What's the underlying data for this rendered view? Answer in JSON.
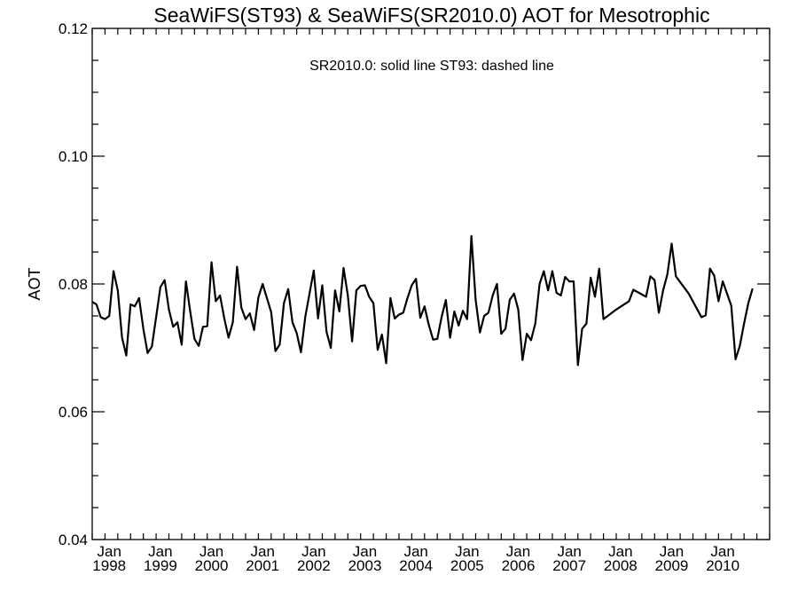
{
  "chart_data": {
    "type": "line",
    "title": "SeaWiFS(ST93) & SeaWiFS(SR2010.0)  AOT for Mesotrophic",
    "annotation": "SR2010.0: solid line   ST93: dashed line",
    "xlabel": "",
    "ylabel": "AOT",
    "ylim": [
      0.04,
      0.12
    ],
    "y_ticks": [
      "0.04",
      "0.06",
      "0.08",
      "0.10",
      "0.12"
    ],
    "x_ticks": [
      {
        "month": "Jan",
        "year": "1998"
      },
      {
        "month": "Jan",
        "year": "1999"
      },
      {
        "month": "Jan",
        "year": "2000"
      },
      {
        "month": "Jan",
        "year": "2001"
      },
      {
        "month": "Jan",
        "year": "2002"
      },
      {
        "month": "Jan",
        "year": "2003"
      },
      {
        "month": "Jan",
        "year": "2004"
      },
      {
        "month": "Jan",
        "year": "2005"
      },
      {
        "month": "Jan",
        "year": "2006"
      },
      {
        "month": "Jan",
        "year": "2007"
      },
      {
        "month": "Jan",
        "year": "2008"
      },
      {
        "month": "Jan",
        "year": "2009"
      },
      {
        "month": "Jan",
        "year": "2010"
      }
    ],
    "xlim": [
      "1997-09",
      "2010-12"
    ],
    "grid": false,
    "series": [
      {
        "name": "SR2010.0",
        "style": "solid",
        "color": "#000000",
        "points": [
          [
            "1997-09",
            0.0772
          ],
          [
            "1997-10",
            0.0768
          ],
          [
            "1997-11",
            0.0748
          ],
          [
            "1997-12",
            0.0745
          ],
          [
            "1998-01",
            0.075
          ],
          [
            "1998-02",
            0.082
          ],
          [
            "1998-03",
            0.079
          ],
          [
            "1998-04",
            0.0716
          ],
          [
            "1998-05",
            0.0688
          ],
          [
            "1998-06",
            0.0768
          ],
          [
            "1998-07",
            0.0765
          ],
          [
            "1998-08",
            0.0778
          ],
          [
            "1998-09",
            0.073
          ],
          [
            "1998-10",
            0.0692
          ],
          [
            "1998-11",
            0.0702
          ],
          [
            "1998-12",
            0.0748
          ],
          [
            "1999-01",
            0.0795
          ],
          [
            "1999-02",
            0.0806
          ],
          [
            "1999-03",
            0.076
          ],
          [
            "1999-04",
            0.0733
          ],
          [
            "1999-05",
            0.074
          ],
          [
            "1999-06",
            0.0705
          ],
          [
            "1999-07",
            0.0804
          ],
          [
            "1999-08",
            0.0757
          ],
          [
            "1999-09",
            0.0714
          ],
          [
            "1999-10",
            0.0703
          ],
          [
            "1999-11",
            0.0733
          ],
          [
            "1999-12",
            0.0734
          ],
          [
            "2000-01",
            0.0834
          ],
          [
            "2000-02",
            0.0773
          ],
          [
            "2000-03",
            0.0782
          ],
          [
            "2000-04",
            0.0746
          ],
          [
            "2000-05",
            0.0716
          ],
          [
            "2000-06",
            0.074
          ],
          [
            "2000-07",
            0.0827
          ],
          [
            "2000-08",
            0.0763
          ],
          [
            "2000-09",
            0.0745
          ],
          [
            "2000-10",
            0.0754
          ],
          [
            "2000-11",
            0.0728
          ],
          [
            "2000-12",
            0.0779
          ],
          [
            "2001-01",
            0.08
          ],
          [
            "2001-02",
            0.0778
          ],
          [
            "2001-03",
            0.0756
          ],
          [
            "2001-04",
            0.0695
          ],
          [
            "2001-05",
            0.0705
          ],
          [
            "2001-06",
            0.077
          ],
          [
            "2001-07",
            0.0792
          ],
          [
            "2001-08",
            0.074
          ],
          [
            "2001-09",
            0.0723
          ],
          [
            "2001-10",
            0.0693
          ],
          [
            "2001-11",
            0.0748
          ],
          [
            "2001-12",
            0.0785
          ],
          [
            "2002-01",
            0.0821
          ],
          [
            "2002-02",
            0.0746
          ],
          [
            "2002-03",
            0.0798
          ],
          [
            "2002-04",
            0.0725
          ],
          [
            "2002-05",
            0.07
          ],
          [
            "2002-06",
            0.079
          ],
          [
            "2002-07",
            0.0757
          ],
          [
            "2002-08",
            0.0825
          ],
          [
            "2002-09",
            0.0782
          ],
          [
            "2002-10",
            0.071
          ],
          [
            "2002-11",
            0.079
          ],
          [
            "2002-12",
            0.0797
          ],
          [
            "2003-01",
            0.0798
          ],
          [
            "2003-02",
            0.078
          ],
          [
            "2003-03",
            0.077
          ],
          [
            "2003-04",
            0.0697
          ],
          [
            "2003-05",
            0.0721
          ],
          [
            "2003-06",
            0.0676
          ],
          [
            "2003-07",
            0.0778
          ],
          [
            "2003-08",
            0.0746
          ],
          [
            "2003-09",
            0.0752
          ],
          [
            "2003-10",
            0.0755
          ],
          [
            "2003-11",
            0.0778
          ],
          [
            "2003-12",
            0.0798
          ],
          [
            "2004-01",
            0.0808
          ],
          [
            "2004-02",
            0.0747
          ],
          [
            "2004-03",
            0.0765
          ],
          [
            "2004-04",
            0.0736
          ],
          [
            "2004-05",
            0.0713
          ],
          [
            "2004-06",
            0.0714
          ],
          [
            "2004-07",
            0.0748
          ],
          [
            "2004-08",
            0.0775
          ],
          [
            "2004-09",
            0.0716
          ],
          [
            "2004-10",
            0.0757
          ],
          [
            "2004-11",
            0.0735
          ],
          [
            "2004-12",
            0.0758
          ],
          [
            "2005-01",
            0.0745
          ],
          [
            "2005-02",
            0.0875
          ],
          [
            "2005-03",
            0.0775
          ],
          [
            "2005-04",
            0.0724
          ],
          [
            "2005-05",
            0.075
          ],
          [
            "2005-06",
            0.0755
          ],
          [
            "2005-07",
            0.0782
          ],
          [
            "2005-08",
            0.08
          ],
          [
            "2005-09",
            0.0722
          ],
          [
            "2005-10",
            0.073
          ],
          [
            "2005-11",
            0.0775
          ],
          [
            "2005-12",
            0.0785
          ],
          [
            "2006-01",
            0.076
          ],
          [
            "2006-02",
            0.0681
          ],
          [
            "2006-03",
            0.0722
          ],
          [
            "2006-04",
            0.0712
          ],
          [
            "2006-05",
            0.0738
          ],
          [
            "2006-06",
            0.08
          ],
          [
            "2006-07",
            0.082
          ],
          [
            "2006-08",
            0.079
          ],
          [
            "2006-09",
            0.082
          ],
          [
            "2006-10",
            0.0786
          ],
          [
            "2006-11",
            0.0782
          ],
          [
            "2006-12",
            0.0811
          ],
          [
            "2007-01",
            0.0804
          ],
          [
            "2007-02",
            0.0804
          ],
          [
            "2007-03",
            0.0673
          ],
          [
            "2007-04",
            0.073
          ],
          [
            "2007-05",
            0.0738
          ],
          [
            "2007-06",
            0.081
          ],
          [
            "2007-07",
            0.078
          ],
          [
            "2007-08",
            0.0824
          ],
          [
            "2007-09",
            0.0745
          ],
          [
            "2007-12",
            0.076
          ],
          [
            "2008-03",
            0.0773
          ],
          [
            "2008-04",
            0.0791
          ],
          [
            "2008-07",
            0.078
          ],
          [
            "2008-08",
            0.0812
          ],
          [
            "2008-09",
            0.0806
          ],
          [
            "2008-10",
            0.0755
          ],
          [
            "2008-11",
            0.079
          ],
          [
            "2008-12",
            0.0815
          ],
          [
            "2009-01",
            0.0863
          ],
          [
            "2009-02",
            0.0812
          ],
          [
            "2009-05",
            0.0785
          ],
          [
            "2009-08",
            0.0748
          ],
          [
            "2009-09",
            0.0751
          ],
          [
            "2009-10",
            0.0824
          ],
          [
            "2009-11",
            0.0813
          ],
          [
            "2009-12",
            0.0773
          ],
          [
            "2010-01",
            0.0804
          ],
          [
            "2010-02",
            0.0785
          ],
          [
            "2010-03",
            0.0766
          ],
          [
            "2010-04",
            0.0682
          ],
          [
            "2010-05",
            0.0703
          ],
          [
            "2010-06",
            0.0738
          ],
          [
            "2010-07",
            0.077
          ],
          [
            "2010-08",
            0.0793
          ]
        ]
      }
    ]
  }
}
